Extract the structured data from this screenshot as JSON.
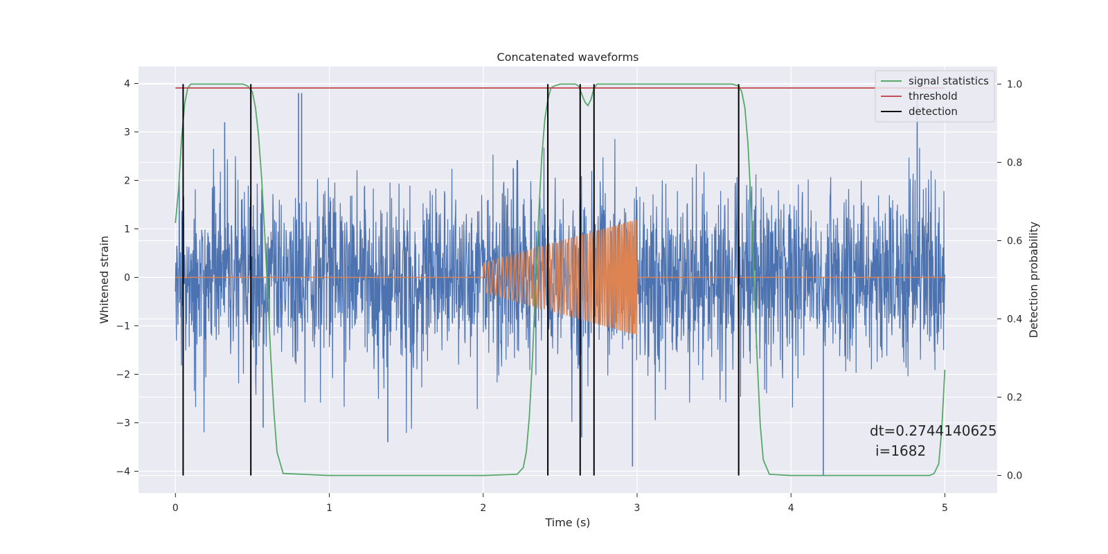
{
  "chart_data": {
    "type": "line",
    "title": "Concatenated waveforms",
    "xlabel": "Time (s)",
    "ylabel": "Whitened strain",
    "y2label": "Detection probability",
    "xlim": [
      -0.24,
      5.34
    ],
    "ylim": [
      -4.45,
      4.35
    ],
    "y2lim": [
      -0.045,
      1.045
    ],
    "xticks": [
      0,
      1,
      2,
      3,
      4,
      5
    ],
    "yticks": [
      -4,
      -3,
      -2,
      -1,
      0,
      1,
      2,
      3,
      4
    ],
    "y2ticks": [
      0.0,
      0.2,
      0.4,
      0.6,
      0.8,
      1.0
    ],
    "grid": true,
    "background": "#eaeaf2",
    "legend_position": "upper right",
    "annotation": {
      "line1": "dt=0.2744140625",
      "line2": "i=1682"
    },
    "series": [
      {
        "name": "",
        "role": "whitened noise strain (dense random trace)",
        "color": "#4c72b0",
        "x_range": [
          0,
          5
        ],
        "envelope_typical": [
          -1.0,
          1.0
        ],
        "peaks": [
          {
            "x": 0.8,
            "y": 3.8
          },
          {
            "x": 0.82,
            "y": 3.8
          },
          {
            "x": 0.32,
            "y": 3.2
          },
          {
            "x": 4.82,
            "y": 3.65
          },
          {
            "x": 4.21,
            "y": -4.1
          },
          {
            "x": 2.97,
            "y": -3.9
          },
          {
            "x": 1.38,
            "y": -3.4
          },
          {
            "x": 2.64,
            "y": -3.3
          },
          {
            "x": 0.57,
            "y": -3.1
          }
        ]
      },
      {
        "name": "",
        "role": "injected chirp signal",
        "color": "#dd8452",
        "x_range": [
          0,
          5
        ],
        "chirp_start": 2.0,
        "chirp_end": 3.0,
        "amplitude_start": 0.3,
        "amplitude_end": 1.2
      },
      {
        "name": "signal statistics",
        "color": "#55a868",
        "axis": "right",
        "x": [
          0,
          0.02,
          0.04,
          0.06,
          0.08,
          0.1,
          0.12,
          0.44,
          0.47,
          0.5,
          0.52,
          0.54,
          0.56,
          0.58,
          0.6,
          0.62,
          0.64,
          0.66,
          0.7,
          1.0,
          1.5,
          2.0,
          2.22,
          2.26,
          2.28,
          2.3,
          2.32,
          2.34,
          2.36,
          2.38,
          2.4,
          2.42,
          2.44,
          2.46,
          2.5,
          2.6,
          2.62,
          2.64,
          2.66,
          2.68,
          2.7,
          2.72,
          2.74,
          2.78,
          3.0,
          3.5,
          3.62,
          3.66,
          3.68,
          3.7,
          3.72,
          3.74,
          3.76,
          3.78,
          3.8,
          3.82,
          3.86,
          4.0,
          4.5,
          4.9,
          4.93,
          4.96,
          4.98,
          5.0
        ],
        "y": [
          0.645,
          0.73,
          0.86,
          0.95,
          0.99,
          1.0,
          1.0,
          1.0,
          0.995,
          0.98,
          0.94,
          0.87,
          0.76,
          0.62,
          0.46,
          0.3,
          0.16,
          0.06,
          0.005,
          0.0,
          0.0,
          0.0,
          0.003,
          0.02,
          0.06,
          0.15,
          0.3,
          0.48,
          0.66,
          0.81,
          0.91,
          0.96,
          0.99,
          0.995,
          1.0,
          1.0,
          0.995,
          0.975,
          0.955,
          0.945,
          0.96,
          0.99,
          1.0,
          1.0,
          1.0,
          1.0,
          1.0,
          0.995,
          0.98,
          0.94,
          0.85,
          0.7,
          0.5,
          0.3,
          0.13,
          0.04,
          0.003,
          0.0,
          0.0,
          0.0,
          0.005,
          0.03,
          0.12,
          0.27
        ]
      },
      {
        "name": "threshold",
        "color": "#c44e52",
        "axis": "right",
        "x": [
          0,
          5
        ],
        "y": [
          0.99,
          0.99
        ]
      },
      {
        "name": "detection",
        "color": "#000000",
        "axis": "right",
        "type": "vlines",
        "x": [
          0.05,
          0.49,
          2.42,
          2.63,
          2.72,
          3.66
        ],
        "y_range": [
          0.0,
          1.0
        ]
      }
    ]
  }
}
